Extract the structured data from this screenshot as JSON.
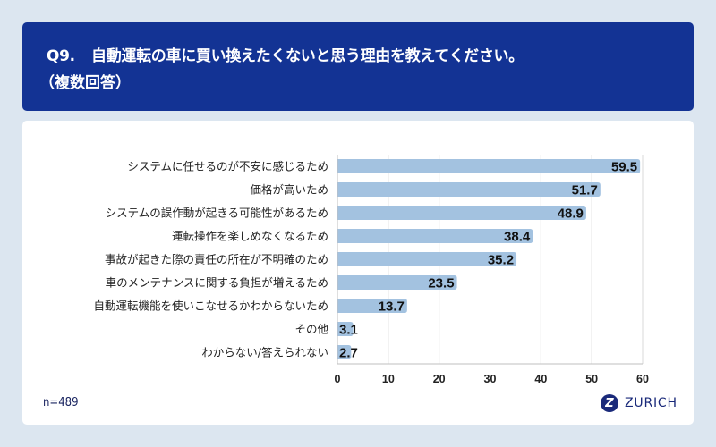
{
  "header": {
    "question_number": "Q9.",
    "question_text": "自動運転の車に買い換えたくないと思う理由を教えてください。",
    "note": "（複数回答）"
  },
  "footer": {
    "sample_size": "n=489",
    "brand": "ZURICH",
    "brand_mark": "Z"
  },
  "colors": {
    "header_bg": "#133394",
    "bar": "#a3c2e0",
    "grid": "#d9d9d9",
    "page_bg": "#dce6f0"
  },
  "chart_data": {
    "type": "bar",
    "orientation": "horizontal",
    "title": "自動運転の車に買い換えたくないと思う理由を教えてください。（複数回答）",
    "categories": [
      "システムに任せるのが不安に感じるため",
      "価格が高いため",
      "システムの誤作動が起きる可能性があるため",
      "運転操作を楽しめなくなるため",
      "事故が起きた際の責任の所在が不明確のため",
      "車のメンテナンスに関する負担が増えるため",
      "自動運転機能を使いこなせるかわからないため",
      "その他",
      "わからない/答えられない"
    ],
    "values": [
      59.5,
      51.7,
      48.9,
      38.4,
      35.2,
      23.5,
      13.7,
      3.1,
      2.7
    ],
    "data_labels": [
      "59.5",
      "51.7",
      "48.9",
      "38.4",
      "35.2",
      "23.5",
      "13.7",
      "3.1",
      "2.7"
    ],
    "xlim": [
      0,
      60
    ],
    "xticks": [
      0,
      10,
      20,
      30,
      40,
      50,
      60
    ],
    "xtick_labels": [
      "0",
      "10",
      "20",
      "30",
      "40",
      "50",
      "60"
    ],
    "xlabel": "",
    "ylabel": "",
    "grid": true,
    "legend": "none"
  }
}
